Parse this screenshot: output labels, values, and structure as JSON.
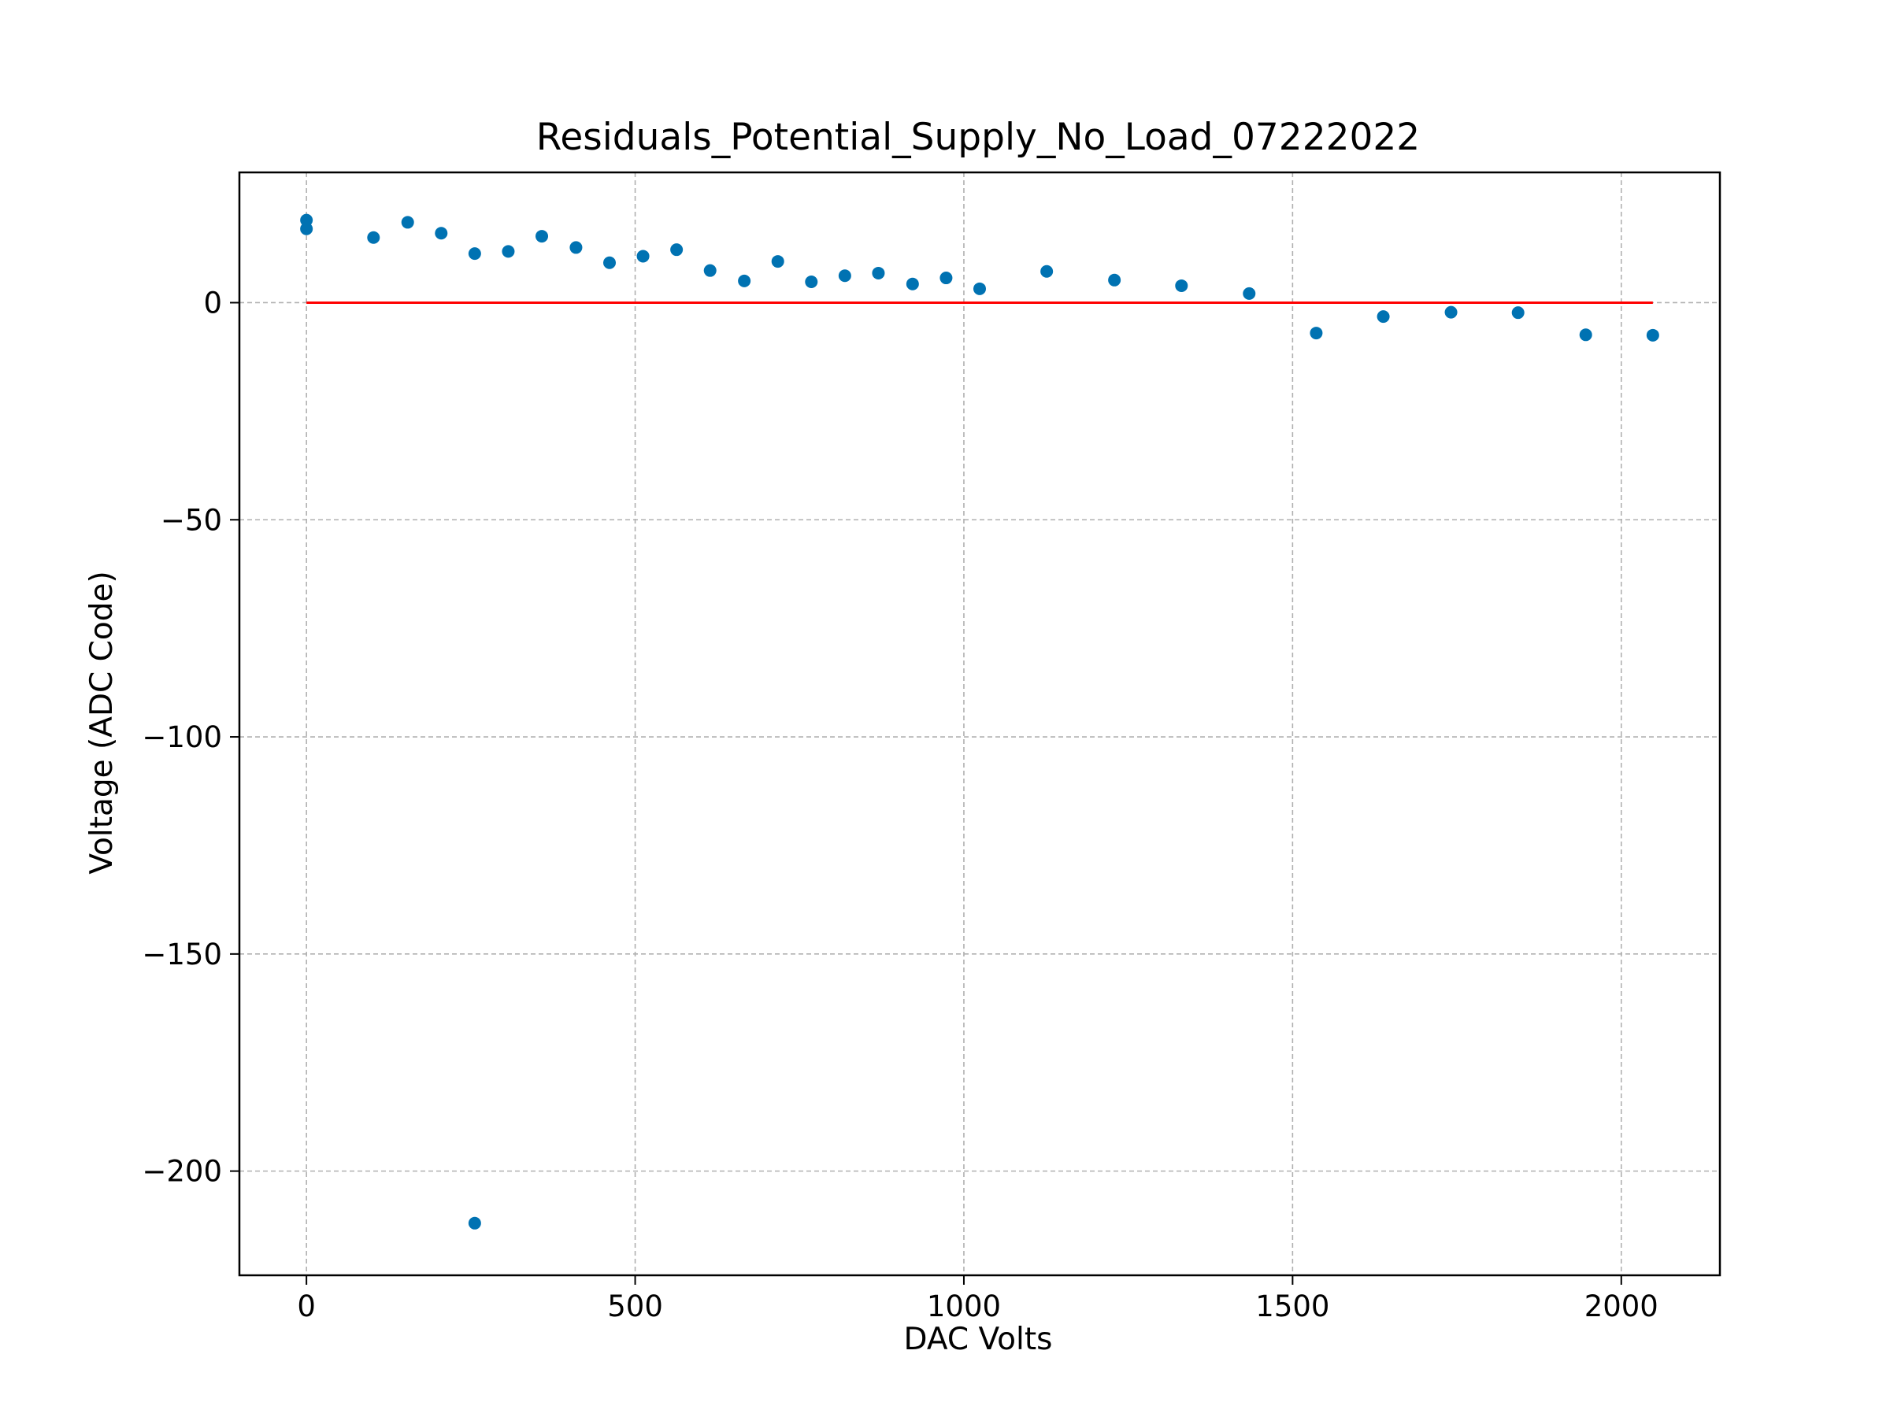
{
  "chart_data": {
    "type": "scatter",
    "title": "Residuals_Potential_Supply_No_Load_07222022",
    "xlabel": "DAC Volts",
    "ylabel": "Voltage (ADC Code)",
    "xlim": [
      -102,
      2150
    ],
    "ylim": [
      -224,
      30
    ],
    "xticks": [
      0,
      500,
      1000,
      1500,
      2000
    ],
    "yticks": [
      0,
      -50,
      -100,
      -150,
      -200
    ],
    "xtick_labels": [
      "0",
      "500",
      "1000",
      "1500",
      "2000"
    ],
    "ytick_labels": [
      "0",
      "−50",
      "−100",
      "−150",
      "−200"
    ],
    "grid": true,
    "colors": {
      "points": "#0072b2",
      "reference_line": "#ff0000",
      "grid": "#b0b0b0"
    },
    "series": [
      {
        "points": [
          [
            0,
            19
          ],
          [
            0,
            17
          ],
          [
            102,
            15
          ],
          [
            154,
            18.5
          ],
          [
            205,
            16
          ],
          [
            256,
            11.3
          ],
          [
            307,
            11.8
          ],
          [
            358,
            15.3
          ],
          [
            410,
            12.7
          ],
          [
            461,
            9.2
          ],
          [
            512,
            10.7
          ],
          [
            563,
            12.2
          ],
          [
            614,
            7.4
          ],
          [
            666,
            5
          ],
          [
            717,
            9.5
          ],
          [
            768,
            4.8
          ],
          [
            819,
            6.2
          ],
          [
            870,
            6.8
          ],
          [
            922,
            4.3
          ],
          [
            973,
            5.7
          ],
          [
            1024,
            3.2
          ],
          [
            1126,
            7.2
          ],
          [
            1229,
            5.2
          ],
          [
            1331,
            3.9
          ],
          [
            1434,
            2.1
          ],
          [
            1536,
            -7
          ],
          [
            1638,
            -3.2
          ],
          [
            1741,
            -2.2
          ],
          [
            1843,
            -2.3
          ],
          [
            1946,
            -7.4
          ],
          [
            2048,
            -7.5
          ],
          [
            256,
            -212
          ]
        ]
      }
    ],
    "reference_line": {
      "y": 0,
      "x_start": 0,
      "x_end": 2048
    }
  }
}
